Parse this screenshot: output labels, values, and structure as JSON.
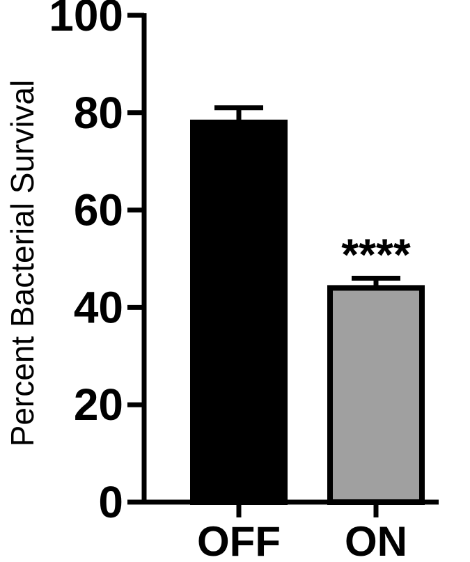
{
  "chart_data": {
    "type": "bar",
    "categories": [
      "OFF",
      "ON"
    ],
    "values": [
      78,
      44
    ],
    "errors": [
      3,
      2
    ],
    "bar_colors": [
      "#000000",
      "#a0a0a0"
    ],
    "bar_edge_color": "#000000",
    "significance": [
      "",
      "****"
    ],
    "title": "",
    "xlabel": "",
    "ylabel": "Percent Bacterial Survival",
    "ylim": [
      0,
      100
    ],
    "yticks": [
      0,
      20,
      40,
      60,
      80,
      100
    ],
    "grid": false,
    "legend": "none"
  }
}
